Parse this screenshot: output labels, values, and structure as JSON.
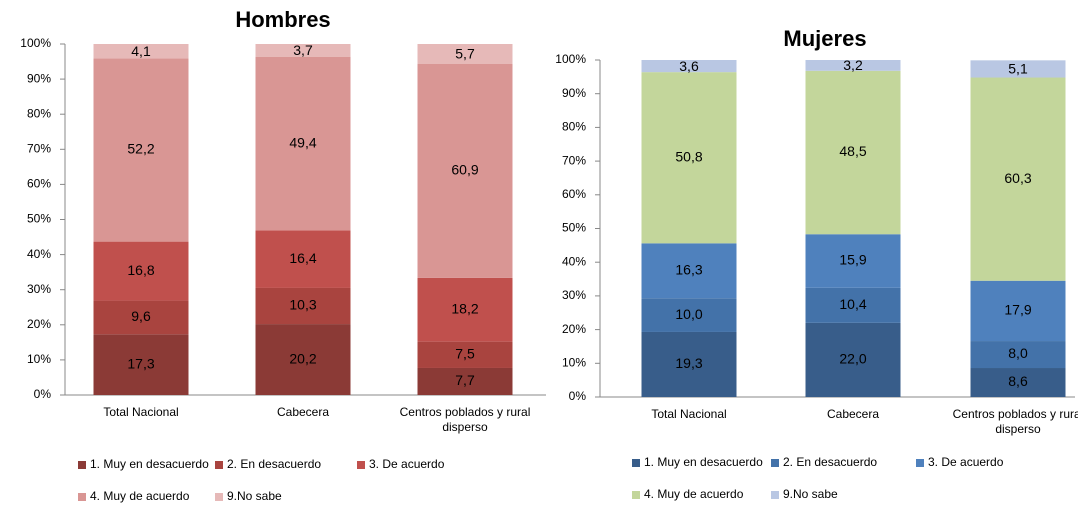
{
  "chart_data": [
    {
      "type": "bar",
      "stacked": true,
      "title": "Hombres",
      "categories": [
        "Total Nacional",
        "Cabecera",
        "Centros poblados y rural disperso"
      ],
      "series": [
        {
          "name": "1. Muy en desacuerdo",
          "color": "#8b3a36",
          "values": [
            17.3,
            20.2,
            7.7
          ],
          "value_labels": [
            "17,3",
            "20,2",
            "7,7"
          ]
        },
        {
          "name": "2. En desacuerdo",
          "color": "#a9443f",
          "values": [
            9.6,
            10.3,
            7.5
          ],
          "value_labels": [
            "9,6",
            "10,3",
            "7,5"
          ]
        },
        {
          "name": "3. De acuerdo",
          "color": "#c0504d",
          "values": [
            16.8,
            16.4,
            18.2
          ],
          "value_labels": [
            "16,8",
            "16,4",
            "18,2"
          ]
        },
        {
          "name": "4. Muy de acuerdo",
          "color": "#d99694",
          "values": [
            52.2,
            49.4,
            60.9
          ],
          "value_labels": [
            "52,2",
            "49,4",
            "60,9"
          ]
        },
        {
          "name": "9.No sabe",
          "color": "#e6b9b8",
          "values": [
            4.1,
            3.7,
            5.7
          ],
          "value_labels": [
            "4,1",
            "3,7",
            "5,7"
          ]
        }
      ],
      "ylim": [
        0,
        100
      ],
      "yticks": [
        {
          "value": 0,
          "label": "0%"
        },
        {
          "value": 10,
          "label": "10%"
        },
        {
          "value": 20,
          "label": "20%"
        },
        {
          "value": 30,
          "label": "30%"
        },
        {
          "value": 40,
          "label": "40%"
        },
        {
          "value": 50,
          "label": "50%"
        },
        {
          "value": 60,
          "label": "60%"
        },
        {
          "value": 70,
          "label": "70%"
        },
        {
          "value": 80,
          "label": "80%"
        },
        {
          "value": 90,
          "label": "90%"
        },
        {
          "value": 100,
          "label": "100%"
        }
      ],
      "legend": "bottom"
    },
    {
      "type": "bar",
      "stacked": true,
      "title": "Mujeres",
      "categories": [
        "Total Nacional",
        "Cabecera",
        "Centros poblados y rural disperso"
      ],
      "series": [
        {
          "name": "1. Muy en desacuerdo",
          "color": "#385d8a",
          "values": [
            19.3,
            22.0,
            8.6
          ],
          "value_labels": [
            "19,3",
            "22,0",
            "8,6"
          ]
        },
        {
          "name": "2. En desacuerdo",
          "color": "#4372a9",
          "values": [
            10.0,
            10.4,
            8.0
          ],
          "value_labels": [
            "10,0",
            "10,4",
            "8,0"
          ]
        },
        {
          "name": "3. De acuerdo",
          "color": "#4f81bd",
          "values": [
            16.3,
            15.9,
            17.9
          ],
          "value_labels": [
            "16,3",
            "15,9",
            "17,9"
          ]
        },
        {
          "name": "4. Muy de acuerdo",
          "color": "#c3d69b",
          "values": [
            50.8,
            48.5,
            60.3
          ],
          "value_labels": [
            "50,8",
            "48,5",
            "60,3"
          ]
        },
        {
          "name": "9.No sabe",
          "color": "#b9c7e3",
          "values": [
            3.6,
            3.2,
            5.1
          ],
          "value_labels": [
            "3,6",
            "3,2",
            "5,1"
          ]
        }
      ],
      "ylim": [
        0,
        100
      ],
      "yticks": [
        {
          "value": 0,
          "label": "0%"
        },
        {
          "value": 10,
          "label": "10%"
        },
        {
          "value": 20,
          "label": "20%"
        },
        {
          "value": 30,
          "label": "30%"
        },
        {
          "value": 40,
          "label": "40%"
        },
        {
          "value": 50,
          "label": "50%"
        },
        {
          "value": 60,
          "label": "60%"
        },
        {
          "value": 70,
          "label": "70%"
        },
        {
          "value": 80,
          "label": "80%"
        },
        {
          "value": 90,
          "label": "90%"
        },
        {
          "value": 100,
          "label": "100%"
        }
      ],
      "legend": "bottom"
    }
  ]
}
